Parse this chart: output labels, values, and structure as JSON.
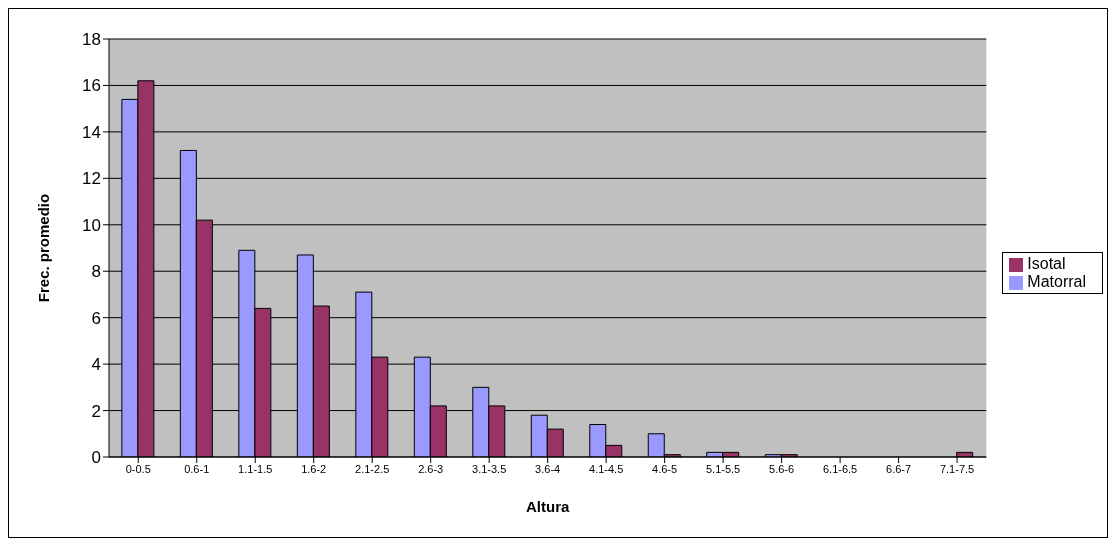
{
  "chart_data": {
    "type": "bar",
    "xlabel": "Altura",
    "ylabel": "Frec. promedio",
    "categories": [
      "0-0.5",
      "0.6-1",
      "1.1-1.5",
      "1.6-2",
      "2.1-2.5",
      "2.6-3",
      "3.1-3.5",
      "3.6-4",
      "4.1-4.5",
      "4.6-5",
      "5.1-5.5",
      "5.6-6",
      "6.1-6.5",
      "6.6-7",
      "7.1-7.5"
    ],
    "series": [
      {
        "name": "Matorral",
        "color": "#9999ff",
        "values": [
          15.4,
          13.2,
          8.9,
          8.7,
          7.1,
          4.3,
          3.0,
          1.8,
          1.4,
          1.0,
          0.2,
          0.1,
          0,
          0,
          0
        ]
      },
      {
        "name": "Isotal",
        "color": "#993366",
        "values": [
          16.2,
          10.2,
          6.4,
          6.5,
          4.3,
          2.2,
          2.2,
          1.2,
          0.5,
          0.1,
          0.2,
          0.1,
          0,
          0,
          0.2
        ]
      }
    ],
    "ylim": [
      0,
      18
    ],
    "yticks": [
      0,
      2,
      4,
      6,
      8,
      10,
      12,
      14,
      16,
      18
    ],
    "grid": "y",
    "legend": "right"
  }
}
